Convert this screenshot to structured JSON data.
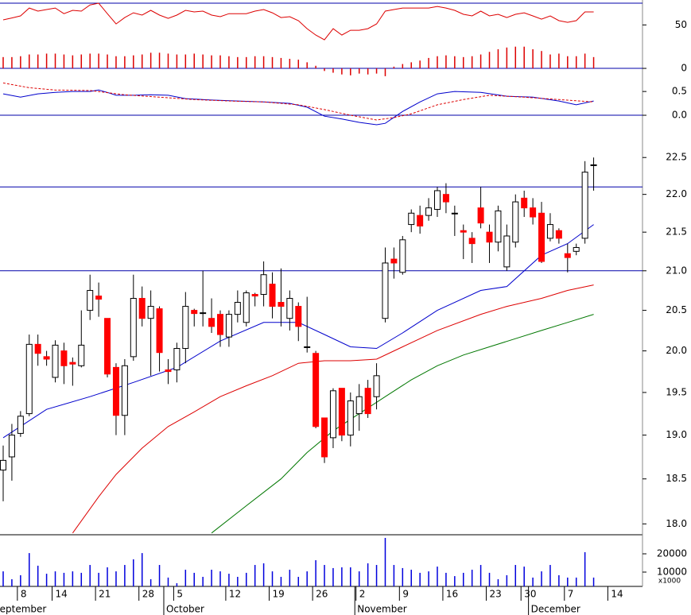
{
  "chart_data": {
    "type": "candlestick",
    "categories": [
      null,
      null,
      "8",
      null,
      null,
      null,
      "14",
      null,
      null,
      null,
      null,
      "21",
      null,
      null,
      null,
      null,
      "28",
      null,
      null,
      null,
      "5",
      null,
      null,
      null,
      null,
      null,
      "12",
      null,
      null,
      null,
      null,
      "19",
      null,
      null,
      null,
      null,
      "26",
      null,
      null,
      null,
      null,
      "2",
      null,
      null,
      null,
      null,
      "9",
      null,
      null,
      null,
      null,
      "16",
      null,
      null,
      null,
      null,
      "23",
      null,
      null,
      null,
      "30",
      null,
      null,
      null,
      null,
      "7",
      null,
      null,
      null,
      null,
      "14"
    ],
    "months": [
      {
        "label": "September",
        "start": 0
      },
      {
        "label": "October",
        "start": 19
      },
      {
        "label": "November",
        "start": 41
      },
      {
        "label": "December",
        "start": 61
      }
    ],
    "price": {
      "open": [
        18.6,
        18.75,
        19.02,
        19.25,
        20.08,
        19.93,
        19.68,
        20.0,
        19.86,
        19.82,
        20.5,
        20.68,
        20.4,
        19.8,
        19.23,
        19.93,
        20.65,
        20.4,
        20.52,
        19.77,
        19.77,
        20.03,
        20.5,
        20.47,
        20.4,
        20.45,
        20.17,
        20.45,
        20.35,
        20.7,
        20.7,
        20.83,
        20.6,
        20.4,
        20.55,
        20.05,
        19.97,
        19.2,
        18.97,
        19.55,
        19.0,
        19.25,
        19.55,
        19.45,
        20.4,
        21.15,
        20.98,
        21.6,
        21.72,
        21.72,
        21.8,
        22.0,
        21.75,
        21.52,
        21.42,
        21.82,
        21.5,
        21.37,
        21.05,
        21.37,
        21.95,
        21.82,
        21.75,
        21.42,
        21.52,
        21.22,
        21.25,
        21.42,
        22.4,
        null,
        null
      ],
      "high": [
        18.88,
        19.13,
        19.28,
        20.2,
        20.2,
        20.0,
        20.13,
        20.1,
        19.92,
        20.5,
        20.95,
        20.85,
        20.4,
        19.85,
        19.9,
        20.95,
        20.8,
        20.75,
        20.55,
        19.9,
        20.1,
        20.73,
        20.52,
        21.0,
        20.65,
        20.5,
        20.5,
        20.75,
        20.75,
        20.72,
        21.12,
        20.98,
        21.03,
        20.75,
        20.6,
        20.67,
        20.0,
        19.2,
        19.55,
        19.55,
        19.5,
        19.6,
        19.65,
        19.85,
        21.3,
        21.3,
        21.45,
        21.8,
        21.85,
        21.95,
        22.1,
        22.15,
        21.85,
        21.6,
        21.5,
        22.1,
        21.6,
        21.85,
        21.6,
        22.0,
        22.05,
        21.95,
        21.9,
        21.75,
        21.55,
        21.35,
        21.35,
        22.45,
        22.5,
        null,
        null
      ],
      "low": [
        18.25,
        18.48,
        18.98,
        19.22,
        19.82,
        19.82,
        19.62,
        19.6,
        19.58,
        19.8,
        20.38,
        20.42,
        19.68,
        19.0,
        19.0,
        19.88,
        20.3,
        19.7,
        19.75,
        19.6,
        19.62,
        19.85,
        20.3,
        20.3,
        20.22,
        20.05,
        20.05,
        20.35,
        20.3,
        20.55,
        20.55,
        20.4,
        20.3,
        20.25,
        20.12,
        19.98,
        19.08,
        18.68,
        18.85,
        18.93,
        18.87,
        19.05,
        19.2,
        19.3,
        20.35,
        20.9,
        20.95,
        21.5,
        21.48,
        21.65,
        21.7,
        21.75,
        21.45,
        21.15,
        21.1,
        21.55,
        21.1,
        21.25,
        21.0,
        21.3,
        21.7,
        21.6,
        21.1,
        21.38,
        21.35,
        20.98,
        21.2,
        21.35,
        22.05,
        null,
        null
      ],
      "close": [
        18.71,
        19.0,
        19.22,
        20.08,
        19.97,
        19.9,
        20.07,
        19.82,
        19.84,
        20.07,
        20.75,
        20.64,
        19.72,
        19.23,
        19.82,
        20.65,
        20.4,
        20.55,
        19.98,
        19.75,
        20.03,
        20.55,
        20.46,
        20.47,
        20.3,
        20.2,
        20.45,
        20.6,
        20.72,
        20.68,
        20.95,
        20.55,
        20.55,
        20.65,
        20.3,
        20.05,
        19.1,
        18.75,
        19.52,
        19.0,
        19.4,
        19.45,
        19.25,
        19.7,
        21.1,
        21.1,
        21.4,
        21.75,
        21.58,
        21.82,
        22.05,
        21.9,
        21.75,
        21.5,
        21.35,
        21.62,
        21.37,
        21.78,
        21.45,
        21.9,
        21.82,
        21.7,
        21.12,
        21.6,
        21.42,
        21.17,
        21.3,
        22.3,
        22.4,
        null,
        null
      ],
      "up_color": "#ffffff",
      "down_color": "#ff0000",
      "log_scale": true,
      "ylim": [
        17.89,
        22.92
      ],
      "yticks": [
        {
          "value": 18,
          "label": "18.0"
        },
        18.5,
        {
          "value": 19,
          "label": "19.0"
        },
        19.5,
        {
          "value": 20,
          "label": "20.0"
        },
        20.5,
        {
          "value": 21,
          "label": "21.0"
        },
        21.5,
        {
          "value": 22,
          "label": "22.0"
        },
        22.5
      ],
      "levels": [
        22.1,
        21.0
      ],
      "level_color": "#0000aa",
      "moving_averages": [
        {
          "color": "#0000cc",
          "x": [
            0,
            5,
            10,
            15,
            20,
            25,
            30,
            34,
            37,
            40,
            43,
            46,
            50,
            55,
            58,
            62,
            65,
            68
          ],
          "values": [
            18.97,
            19.3,
            19.45,
            19.62,
            19.8,
            20.12,
            20.35,
            20.35,
            20.2,
            20.05,
            20.03,
            20.22,
            20.5,
            20.75,
            20.8,
            21.2,
            21.35,
            21.6
          ]
        },
        {
          "color": "#dd0000",
          "x": [
            8,
            11,
            13,
            16,
            19,
            22,
            25,
            28,
            31,
            34,
            37,
            40,
            43,
            46,
            50,
            55,
            58,
            62,
            65,
            68
          ],
          "values": [
            17.9,
            18.3,
            18.55,
            18.85,
            19.1,
            19.27,
            19.45,
            19.58,
            19.7,
            19.85,
            19.88,
            19.88,
            19.9,
            20.05,
            20.25,
            20.45,
            20.55,
            20.65,
            20.75,
            20.82
          ]
        },
        {
          "color": "#007700",
          "x": [
            24,
            28,
            32,
            35,
            38,
            41,
            44,
            47,
            50,
            53,
            56,
            59,
            62,
            65,
            68
          ],
          "values": [
            17.9,
            18.2,
            18.5,
            18.8,
            19.05,
            19.25,
            19.45,
            19.65,
            19.82,
            19.95,
            20.05,
            20.15,
            20.25,
            20.35,
            20.45
          ]
        }
      ]
    },
    "volume": {
      "values": [
        10400,
        6100,
        8300,
        20400,
        13500,
        9100,
        10400,
        9600,
        10400,
        9600,
        13900,
        9600,
        12600,
        10400,
        13900,
        17000,
        20400,
        6100,
        13900,
        7000,
        3900,
        11300,
        9600,
        7400,
        11300,
        10400,
        9100,
        7400,
        9600,
        13900,
        14800,
        10400,
        7400,
        11300,
        7400,
        10400,
        16500,
        13900,
        12200,
        12600,
        12600,
        10400,
        14800,
        13900,
        28700,
        13900,
        12200,
        11300,
        9600,
        10400,
        13000,
        9600,
        7800,
        9600,
        11300,
        13900,
        9600,
        6100,
        8300,
        13900,
        13000,
        7000,
        10400,
        13900,
        8300,
        7000,
        7000,
        20900,
        7000,
        null,
        null
      ],
      "color": "#0000dd",
      "ylim": [
        0,
        30000
      ],
      "yticks": [
        10000,
        20000
      ],
      "unit_label": "x1000"
    },
    "oscillator": {
      "line": {
        "color": "#dd0000",
        "values": [
          55.8,
          58,
          60.4,
          69.5,
          65.9,
          67.7,
          69.5,
          63,
          66.8,
          65.9,
          73,
          75,
          63,
          51.2,
          58.5,
          64,
          61.3,
          66.8,
          61.3,
          57.6,
          61.3,
          66.8,
          65,
          65.9,
          61.3,
          59.5,
          63,
          63,
          63,
          65.9,
          67.7,
          64,
          58.5,
          59.5,
          54.9,
          45.7,
          38.4,
          32.9,
          45.7,
          38.4,
          43.9,
          43.9,
          45.7,
          51.2,
          65.9,
          67.7,
          69.5,
          69.5,
          69.5,
          69.5,
          71.3,
          69.5,
          66.8,
          62.2,
          60.4,
          65.9,
          60.4,
          62.2,
          58.5,
          62.2,
          64,
          60.4,
          56.7,
          60.4,
          54.9,
          53,
          54.9,
          65,
          65,
          null,
          null
        ]
      },
      "histogram": {
        "color": "#dd0000",
        "values": [
          13,
          13,
          14,
          16,
          16,
          17,
          17,
          16,
          15,
          16,
          17,
          17,
          16,
          14,
          14,
          15,
          16,
          18,
          18,
          17,
          16,
          16,
          17,
          16,
          15,
          15,
          14,
          13,
          13,
          14,
          14,
          13,
          12,
          11,
          10,
          7,
          3,
          -3,
          -5,
          -7,
          -8,
          -6,
          -7,
          -6,
          -9,
          2,
          5,
          7,
          9,
          12,
          14,
          15,
          14,
          13,
          14,
          16,
          19,
          22,
          24,
          25,
          25,
          22,
          20,
          16,
          17,
          14,
          14,
          17,
          13,
          null,
          null
        ]
      },
      "ylim": [
        -9.1,
        78.7
      ],
      "yticks": [
        0,
        50
      ],
      "levels": [
        75,
        0
      ],
      "level_color": "#0000aa"
    },
    "macd": {
      "series": [
        {
          "color": "#0000cc",
          "dashed": false,
          "x": [
            0,
            2,
            4,
            6,
            8,
            10,
            11,
            12,
            13,
            15,
            17,
            19,
            21,
            24,
            27,
            30,
            33,
            35,
            37,
            39,
            41,
            43,
            44,
            46,
            48,
            50,
            52,
            55,
            58,
            61,
            64,
            66,
            68
          ],
          "values": [
            0.45,
            0.38,
            0.45,
            0.48,
            0.5,
            0.5,
            0.53,
            0.48,
            0.42,
            0.42,
            0.43,
            0.42,
            0.35,
            0.32,
            0.3,
            0.28,
            0.25,
            0.17,
            -0.02,
            -0.08,
            -0.15,
            -0.2,
            -0.17,
            0.08,
            0.28,
            0.45,
            0.5,
            0.48,
            0.4,
            0.38,
            0.3,
            0.22,
            0.3
          ]
        },
        {
          "color": "#dd0000",
          "dashed": true,
          "x": [
            0,
            3,
            6,
            10,
            14,
            18,
            22,
            26,
            30,
            34,
            37,
            40,
            43,
            45,
            47,
            50,
            53,
            56,
            60,
            64,
            68
          ],
          "values": [
            0.68,
            0.58,
            0.53,
            0.52,
            0.43,
            0.38,
            0.33,
            0.3,
            0.28,
            0.22,
            0.12,
            0,
            -0.1,
            -0.05,
            0.03,
            0.22,
            0.33,
            0.42,
            0.38,
            0.33,
            0.28
          ]
        }
      ],
      "ylim": [
        -0.25,
        0.82
      ],
      "yticks": [
        {
          "value": 0,
          "label": "0.0"
        },
        0.5
      ],
      "levels": [
        0
      ],
      "level_color": "#0000aa"
    }
  }
}
